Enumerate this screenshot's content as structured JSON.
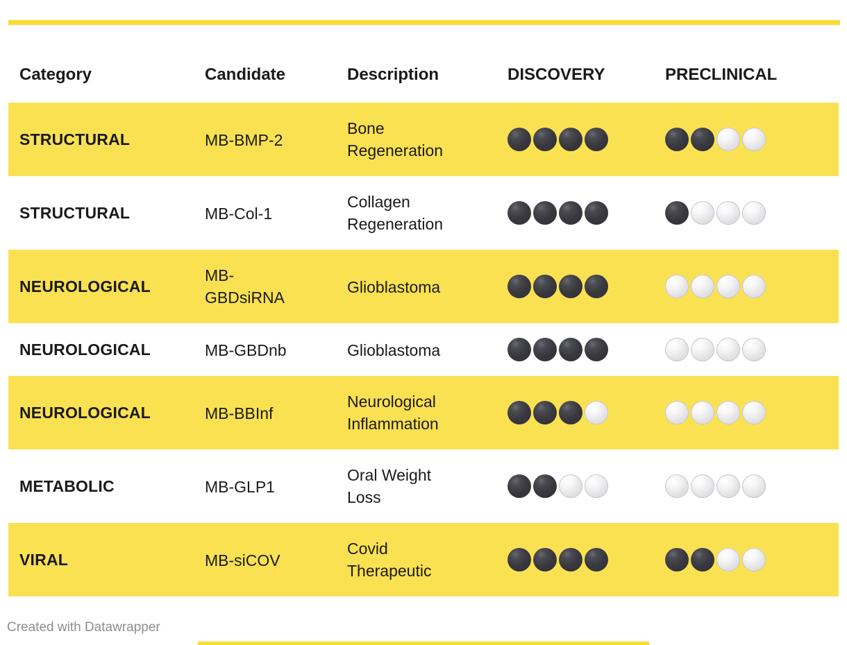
{
  "colors": {
    "accent_yellow": "#f9dc33",
    "row_highlight_yellow": "#fae152",
    "text": "#1a1a1a",
    "footer_text": "#8e8e8e",
    "dot_filled": "#38383e",
    "dot_empty": "#e3e3e5"
  },
  "footer": {
    "credit": "Created with Datawrapper"
  },
  "chart_data": {
    "type": "table",
    "columns": [
      "Category",
      "Candidate",
      "Description",
      "DISCOVERY",
      "PRECLINICAL"
    ],
    "phases": [
      "DISCOVERY",
      "PRECLINICAL"
    ],
    "dots_per_phase": 4,
    "rows": [
      {
        "category": "STRUCTURAL",
        "candidate": "MB-BMP-2",
        "description": "Bone Regeneration",
        "discovery_filled": 4,
        "preclinical_filled": 2,
        "highlighted": true
      },
      {
        "category": "STRUCTURAL",
        "candidate": "MB-Col-1",
        "description": "Collagen Regeneration",
        "discovery_filled": 4,
        "preclinical_filled": 1,
        "highlighted": false
      },
      {
        "category": "NEUROLOGICAL",
        "candidate": "MB-GBDsiRNA",
        "description": "Glioblastoma",
        "discovery_filled": 4,
        "preclinical_filled": 0,
        "highlighted": true
      },
      {
        "category": "NEUROLOGICAL",
        "candidate": "MB-GBDnb",
        "description": "Glioblastoma",
        "discovery_filled": 4,
        "preclinical_filled": 0,
        "highlighted": false
      },
      {
        "category": "NEUROLOGICAL",
        "candidate": "MB-BBInf",
        "description": "Neurological Inflammation",
        "discovery_filled": 3,
        "preclinical_filled": 0,
        "highlighted": true
      },
      {
        "category": "METABOLIC",
        "candidate": "MB-GLP1",
        "description": "Oral Weight Loss",
        "discovery_filled": 2,
        "preclinical_filled": 0,
        "highlighted": false
      },
      {
        "category": "VIRAL",
        "candidate": "MB-siCOV",
        "description": "Covid Therapeutic",
        "discovery_filled": 4,
        "preclinical_filled": 2,
        "highlighted": true
      }
    ]
  }
}
